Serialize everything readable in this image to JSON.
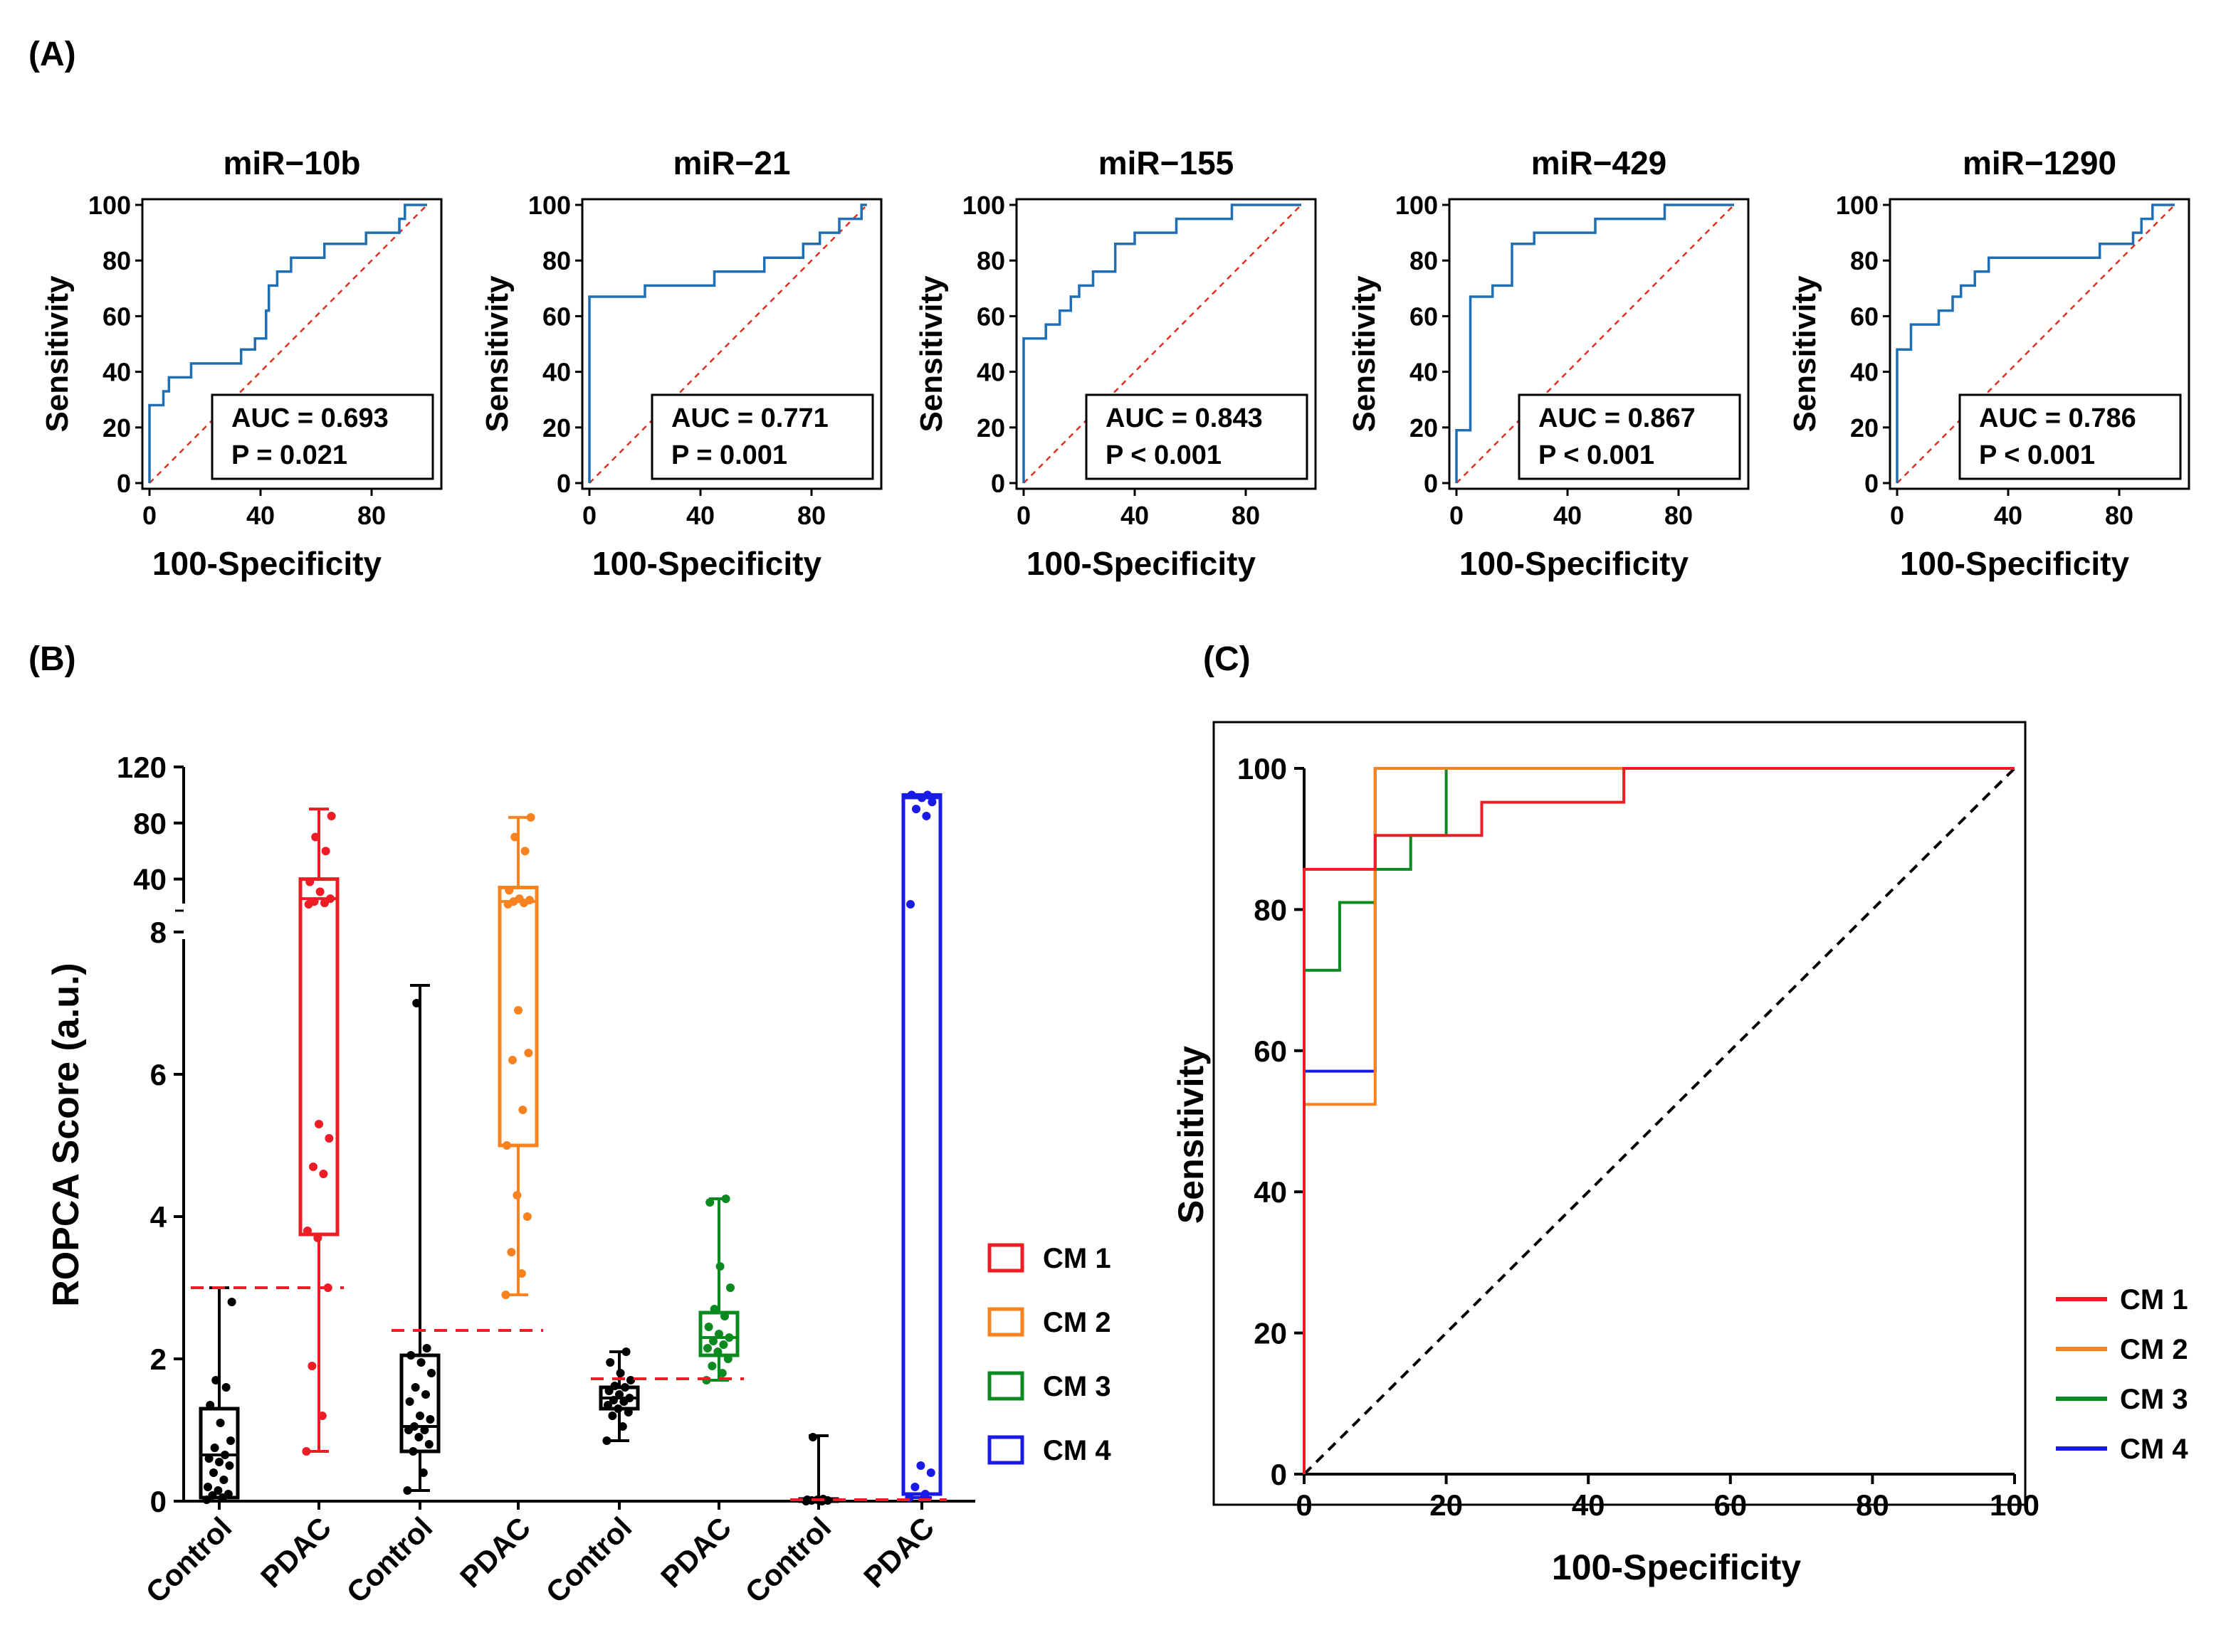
{
  "panel_labels": {
    "a": "(A)",
    "b": "(B)",
    "c": "(C)"
  },
  "colors": {
    "roc_line": "#1f6fb5",
    "diagonal_a": "#e0301e",
    "cm1": "#ee1c24",
    "cm2": "#f7821f",
    "cm3": "#0a8a1f",
    "cm4": "#1a1ae6",
    "control": "#000000",
    "cutoff": "#ee1c24"
  },
  "chart_data": [
    {
      "id": "A1",
      "type": "line",
      "title": "miR−10b",
      "xlabel": "100-Specificity",
      "ylabel": "Sensitivity",
      "xlim": [
        0,
        100
      ],
      "ylim": [
        0,
        100
      ],
      "xticks": [
        0,
        40,
        80
      ],
      "yticks": [
        0,
        20,
        40,
        60,
        80,
        100
      ],
      "stats": {
        "auc": "AUC = 0.693",
        "p": "P = 0.021"
      },
      "points": [
        [
          0,
          0
        ],
        [
          0,
          28
        ],
        [
          5,
          28
        ],
        [
          5,
          33
        ],
        [
          7,
          33
        ],
        [
          7,
          38
        ],
        [
          15,
          38
        ],
        [
          15,
          43
        ],
        [
          33,
          43
        ],
        [
          33,
          48
        ],
        [
          38,
          48
        ],
        [
          38,
          52
        ],
        [
          42,
          52
        ],
        [
          42,
          62
        ],
        [
          43,
          62
        ],
        [
          43,
          71
        ],
        [
          46,
          71
        ],
        [
          46,
          76
        ],
        [
          51,
          76
        ],
        [
          51,
          81
        ],
        [
          63,
          81
        ],
        [
          63,
          86
        ],
        [
          78,
          86
        ],
        [
          78,
          90
        ],
        [
          90,
          90
        ],
        [
          90,
          95
        ],
        [
          92,
          95
        ],
        [
          92,
          100
        ],
        [
          100,
          100
        ]
      ]
    },
    {
      "id": "A2",
      "type": "line",
      "title": "miR−21",
      "xlabel": "100-Specificity",
      "ylabel": "Sensitivity",
      "xlim": [
        0,
        100
      ],
      "ylim": [
        0,
        100
      ],
      "xticks": [
        0,
        40,
        80
      ],
      "yticks": [
        0,
        20,
        40,
        60,
        80,
        100
      ],
      "stats": {
        "auc": "AUC = 0.771",
        "p": "P = 0.001"
      },
      "points": [
        [
          0,
          0
        ],
        [
          0,
          67
        ],
        [
          20,
          67
        ],
        [
          20,
          71
        ],
        [
          45,
          71
        ],
        [
          45,
          76
        ],
        [
          63,
          76
        ],
        [
          63,
          81
        ],
        [
          77,
          81
        ],
        [
          77,
          86
        ],
        [
          83,
          86
        ],
        [
          83,
          90
        ],
        [
          90,
          90
        ],
        [
          90,
          95
        ],
        [
          98,
          95
        ],
        [
          98,
          100
        ],
        [
          100,
          100
        ]
      ]
    },
    {
      "id": "A3",
      "type": "line",
      "title": "miR−155",
      "xlabel": "100-Specificity",
      "ylabel": "Sensitivity",
      "xlim": [
        0,
        100
      ],
      "ylim": [
        0,
        100
      ],
      "xticks": [
        0,
        40,
        80
      ],
      "yticks": [
        0,
        20,
        40,
        60,
        80,
        100
      ],
      "stats": {
        "auc": "AUC = 0.843",
        "p": "P < 0.001"
      },
      "points": [
        [
          0,
          0
        ],
        [
          0,
          52
        ],
        [
          8,
          52
        ],
        [
          8,
          57
        ],
        [
          13,
          57
        ],
        [
          13,
          62
        ],
        [
          17,
          62
        ],
        [
          17,
          67
        ],
        [
          20,
          67
        ],
        [
          20,
          71
        ],
        [
          25,
          71
        ],
        [
          25,
          76
        ],
        [
          33,
          76
        ],
        [
          33,
          86
        ],
        [
          40,
          86
        ],
        [
          40,
          90
        ],
        [
          55,
          90
        ],
        [
          55,
          95
        ],
        [
          75,
          95
        ],
        [
          75,
          100
        ],
        [
          100,
          100
        ]
      ]
    },
    {
      "id": "A4",
      "type": "line",
      "title": "miR−429",
      "xlabel": "100-Specificity",
      "ylabel": "Sensitivity",
      "xlim": [
        0,
        100
      ],
      "ylim": [
        0,
        100
      ],
      "xticks": [
        0,
        40,
        80
      ],
      "yticks": [
        0,
        20,
        40,
        60,
        80,
        100
      ],
      "stats": {
        "auc": "AUC = 0.867",
        "p": "P < 0.001"
      },
      "points": [
        [
          0,
          0
        ],
        [
          0,
          19
        ],
        [
          5,
          19
        ],
        [
          5,
          67
        ],
        [
          13,
          67
        ],
        [
          13,
          71
        ],
        [
          20,
          71
        ],
        [
          20,
          86
        ],
        [
          28,
          86
        ],
        [
          28,
          90
        ],
        [
          50,
          90
        ],
        [
          50,
          95
        ],
        [
          75,
          95
        ],
        [
          75,
          100
        ],
        [
          100,
          100
        ]
      ]
    },
    {
      "id": "A5",
      "type": "line",
      "title": "miR−1290",
      "xlabel": "100-Specificity",
      "ylabel": "Sensitivity",
      "xlim": [
        0,
        100
      ],
      "ylim": [
        0,
        100
      ],
      "xticks": [
        0,
        40,
        80
      ],
      "yticks": [
        0,
        20,
        40,
        60,
        80,
        100
      ],
      "stats": {
        "auc": "AUC = 0.786",
        "p": "P < 0.001"
      },
      "points": [
        [
          0,
          0
        ],
        [
          0,
          48
        ],
        [
          5,
          48
        ],
        [
          5,
          57
        ],
        [
          15,
          57
        ],
        [
          15,
          62
        ],
        [
          20,
          62
        ],
        [
          20,
          67
        ],
        [
          23,
          67
        ],
        [
          23,
          71
        ],
        [
          28,
          71
        ],
        [
          28,
          76
        ],
        [
          33,
          76
        ],
        [
          33,
          81
        ],
        [
          73,
          81
        ],
        [
          73,
          86
        ],
        [
          85,
          86
        ],
        [
          85,
          90
        ],
        [
          88,
          90
        ],
        [
          88,
          95
        ],
        [
          92,
          95
        ],
        [
          92,
          100
        ],
        [
          100,
          100
        ]
      ]
    },
    {
      "id": "B",
      "type": "box",
      "ylabel": "ROPCA Score (a.u.)",
      "yticks_lower": [
        0,
        2,
        4,
        6,
        8
      ],
      "yticks_upper": [
        40,
        80,
        120
      ],
      "ylim_lower": [
        0,
        8
      ],
      "ylim_upper": [
        20,
        120
      ],
      "categories": [
        "Control",
        "PDAC",
        "Control",
        "PDAC",
        "Control",
        "PDAC",
        "Control",
        "PDAC"
      ],
      "legend": [
        "CM 1",
        "CM 2",
        "CM 3",
        "CM 4"
      ],
      "groups": [
        {
          "model": "CM 1",
          "cutoff": 3.0,
          "control": {
            "min": 0,
            "q1": 0.05,
            "median": 0.65,
            "q3": 1.3,
            "max": 3.0,
            "points": [
              0.02,
              0.05,
              0.08,
              0.1,
              0.15,
              0.2,
              0.3,
              0.4,
              0.5,
              0.55,
              0.6,
              0.65,
              0.75,
              0.85,
              1.1,
              1.35,
              1.6,
              1.7,
              2.8
            ]
          },
          "pdac": {
            "min": 0.7,
            "q1": 3.75,
            "median": 26,
            "q3": 40,
            "max": 90,
            "points": [
              0.7,
              1.2,
              1.9,
              3.0,
              3.7,
              3.8,
              4.6,
              4.7,
              5.1,
              5.3,
              22,
              23,
              24,
              26,
              31,
              38,
              60,
              70,
              85
            ]
          }
        },
        {
          "model": "CM 2",
          "cutoff": 2.4,
          "control": {
            "min": 0.15,
            "q1": 0.7,
            "median": 1.05,
            "q3": 2.05,
            "max": 7.25,
            "points": [
              0.15,
              0.4,
              0.7,
              0.8,
              0.9,
              1.0,
              1.0,
              1.05,
              1.15,
              1.2,
              1.4,
              1.5,
              1.6,
              1.8,
              1.95,
              2.05,
              2.15,
              7.0
            ]
          },
          "pdac": {
            "min": 2.9,
            "q1": 5.0,
            "median": 24,
            "q3": 34,
            "max": 84,
            "points": [
              2.9,
              3.2,
              3.5,
              4.0,
              4.3,
              5.0,
              5.5,
              6.2,
              6.3,
              6.9,
              22,
              23,
              24,
              25,
              26,
              32,
              60,
              70,
              84
            ]
          }
        },
        {
          "model": "CM 3",
          "cutoff": 1.72,
          "control": {
            "min": 0.85,
            "q1": 1.3,
            "median": 1.45,
            "q3": 1.6,
            "max": 2.1,
            "points": [
              0.85,
              1.05,
              1.2,
              1.25,
              1.3,
              1.35,
              1.4,
              1.42,
              1.45,
              1.5,
              1.55,
              1.6,
              1.62,
              1.7,
              1.8,
              1.95,
              2.1
            ]
          },
          "pdac": {
            "min": 1.7,
            "q1": 2.05,
            "median": 2.3,
            "q3": 2.65,
            "max": 4.25,
            "points": [
              1.7,
              1.8,
              1.9,
              2.0,
              2.1,
              2.15,
              2.2,
              2.25,
              2.3,
              2.35,
              2.45,
              2.6,
              2.7,
              3.0,
              3.3,
              4.2,
              4.25
            ]
          }
        },
        {
          "model": "CM 4",
          "cutoff": 0.02,
          "control": {
            "min": 0,
            "q1": 0,
            "median": 0.01,
            "q3": 0.03,
            "max": 0.92,
            "points": [
              0,
              0,
              0.01,
              0.01,
              0.02,
              0.02,
              0.03,
              0.9
            ]
          },
          "pdac": {
            "min": 0.05,
            "q1": 0.1,
            "median": 98,
            "q3": 100,
            "max": 100,
            "points": [
              0.05,
              0.1,
              0.2,
              0.4,
              0.5,
              22,
              85,
              90,
              95,
              98,
              100,
              100
            ]
          }
        }
      ]
    },
    {
      "id": "C",
      "type": "line",
      "xlabel": "100-Specificity",
      "ylabel": "Sensitivity",
      "xlim": [
        0,
        100
      ],
      "ylim": [
        0,
        100
      ],
      "xticks": [
        0,
        20,
        40,
        60,
        80,
        100
      ],
      "yticks": [
        0,
        20,
        40,
        60,
        80,
        100
      ],
      "legend": [
        "CM 1",
        "CM 2",
        "CM 3",
        "CM 4"
      ],
      "series": [
        {
          "name": "CM 1",
          "points": [
            [
              0,
              0
            ],
            [
              0,
              85.7
            ],
            [
              10,
              85.7
            ],
            [
              10,
              90.5
            ],
            [
              25,
              90.5
            ],
            [
              25,
              95.2
            ],
            [
              45,
              95.2
            ],
            [
              45,
              100
            ],
            [
              100,
              100
            ]
          ]
        },
        {
          "name": "CM 2",
          "points": [
            [
              0,
              0
            ],
            [
              0,
              52.4
            ],
            [
              10,
              52.4
            ],
            [
              10,
              100
            ],
            [
              100,
              100
            ]
          ]
        },
        {
          "name": "CM 3",
          "points": [
            [
              0,
              0
            ],
            [
              0,
              71.4
            ],
            [
              5,
              71.4
            ],
            [
              5,
              81
            ],
            [
              10,
              81
            ],
            [
              10,
              85.7
            ],
            [
              15,
              85.7
            ],
            [
              15,
              90.5
            ],
            [
              20,
              90.5
            ],
            [
              20,
              100
            ],
            [
              100,
              100
            ]
          ]
        },
        {
          "name": "CM 4",
          "points": [
            [
              0,
              0
            ],
            [
              0,
              57.1
            ],
            [
              10,
              57.1
            ],
            [
              10,
              100
            ],
            [
              100,
              100
            ]
          ]
        }
      ]
    }
  ]
}
